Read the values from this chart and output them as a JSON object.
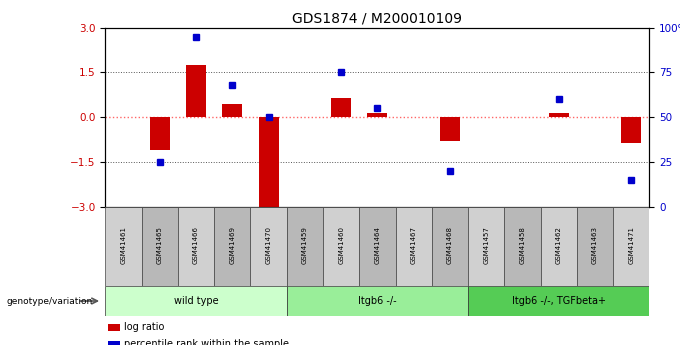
{
  "title": "GDS1874 / M200010109",
  "samples": [
    "GSM41461",
    "GSM41465",
    "GSM41466",
    "GSM41469",
    "GSM41470",
    "GSM41459",
    "GSM41460",
    "GSM41464",
    "GSM41467",
    "GSM41468",
    "GSM41457",
    "GSM41458",
    "GSM41462",
    "GSM41463",
    "GSM41471"
  ],
  "log_ratio": [
    0.0,
    -1.1,
    1.75,
    0.45,
    -3.05,
    0.0,
    0.65,
    0.15,
    0.0,
    -0.8,
    0.0,
    0.0,
    0.15,
    0.0,
    -0.85
  ],
  "percentile_rank": [
    null,
    25,
    95,
    68,
    50,
    null,
    75,
    55,
    null,
    20,
    null,
    null,
    60,
    null,
    15
  ],
  "groups": [
    {
      "label": "wild type",
      "start": 0,
      "end": 5,
      "color": "#ccffcc"
    },
    {
      "label": "Itgb6 -/-",
      "start": 5,
      "end": 10,
      "color": "#99ee99"
    },
    {
      "label": "Itgb6 -/-, TGFbeta+",
      "start": 10,
      "end": 15,
      "color": "#55cc55"
    }
  ],
  "bar_color": "#cc0000",
  "dot_color": "#0000cc",
  "zero_line_color": "#ff6666",
  "dotted_line_color": "#555555",
  "ylim_left": [
    -3,
    3
  ],
  "ylim_right": [
    0,
    100
  ],
  "yticks_left": [
    -3,
    -1.5,
    0,
    1.5,
    3
  ],
  "yticks_right": [
    0,
    25,
    50,
    75,
    100
  ],
  "legend_items": [
    {
      "label": "log ratio",
      "color": "#cc0000"
    },
    {
      "label": "percentile rank within the sample",
      "color": "#0000cc"
    }
  ],
  "genotype_label": "genotype/variation"
}
